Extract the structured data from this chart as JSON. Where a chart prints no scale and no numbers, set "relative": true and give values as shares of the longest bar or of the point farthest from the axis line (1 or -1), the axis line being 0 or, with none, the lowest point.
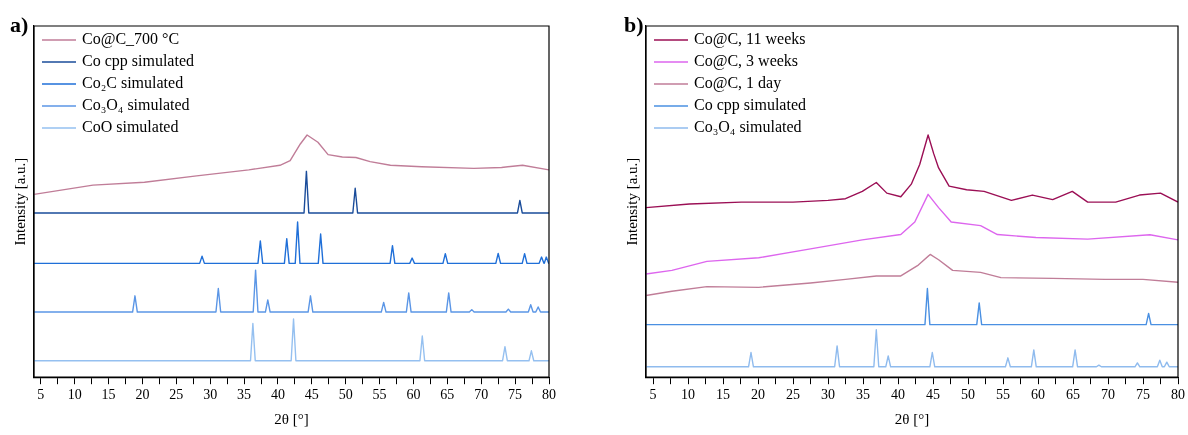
{
  "chart_data": [
    {
      "type": "line",
      "title": "a)",
      "xlabel": "2θ [°]",
      "ylabel": "Intensity [a.u.]",
      "relative": true,
      "legend": "top left",
      "grid": false,
      "xlim": [
        4,
        80
      ],
      "xticks": [
        5,
        {
          "value": 7.5,
          "label": null
        },
        10,
        {
          "value": 12.5,
          "label": null
        },
        15,
        {
          "value": 17.5,
          "label": null
        },
        20,
        {
          "value": 22.5,
          "label": null
        },
        25,
        {
          "value": 27.5,
          "label": null
        },
        30,
        {
          "value": 32.5,
          "label": null
        },
        35,
        {
          "value": 37.5,
          "label": null
        },
        40,
        {
          "value": 42.5,
          "label": null
        },
        45,
        {
          "value": 47.5,
          "label": null
        },
        50,
        {
          "value": 52.5,
          "label": null
        },
        55,
        {
          "value": 57.5,
          "label": null
        },
        60,
        {
          "value": 62.5,
          "label": null
        },
        65,
        {
          "value": 67.5,
          "label": null
        },
        70,
        {
          "value": 72.5,
          "label": null
        },
        75,
        {
          "value": 77.5,
          "label": null
        },
        80
      ],
      "series": [
        {
          "name": "Co@C_700 °C",
          "color": "#c07d98",
          "x": [
            4,
            12.7,
            20.3,
            28.0,
            35.7,
            40.3,
            41.8,
            43.3,
            44.3,
            45.9,
            47.4,
            49.5,
            51.5,
            53.6,
            56.6,
            61.2,
            68.9,
            73.0,
            76.1,
            80
          ],
          "values": [
            0.755,
            0.793,
            0.805,
            0.831,
            0.856,
            0.875,
            0.894,
            0.963,
            1.0,
            0.97,
            0.919,
            0.909,
            0.907,
            0.89,
            0.875,
            0.869,
            0.862,
            0.866,
            0.875,
            0.856
          ]
        },
        {
          "name": "Co cpp simulated",
          "color": "#1a4c9a",
          "x": [
            4,
            43.85,
            44.2,
            44.55,
            51.05,
            51.4,
            51.75,
            75.35,
            75.7,
            76.05,
            80
          ],
          "values": [
            0.678,
            0.678,
            0.85,
            0.678,
            0.678,
            0.78,
            0.678,
            0.678,
            0.73,
            0.678,
            0.678
          ]
        },
        {
          "name": "Co₂C simulated",
          "color": "#1f6fd8",
          "x": [
            4,
            28.45,
            28.8,
            29.15,
            37.05,
            37.4,
            37.75,
            40.95,
            41.3,
            41.65,
            42.55,
            42.9,
            43.25,
            45.95,
            46.3,
            46.65,
            56.55,
            56.9,
            57.25,
            59.45,
            59.8,
            60.15,
            64.35,
            64.7,
            65.05,
            72.15,
            72.5,
            72.85,
            76.05,
            76.4,
            76.75,
            78.55,
            78.9,
            79.25,
            79.3,
            79.6,
            79.95,
            80
          ],
          "values": [
            0.47,
            0.47,
            0.5,
            0.47,
            0.47,
            0.563,
            0.47,
            0.47,
            0.572,
            0.47,
            0.47,
            0.641,
            0.47,
            0.47,
            0.591,
            0.47,
            0.47,
            0.543,
            0.47,
            0.47,
            0.492,
            0.47,
            0.47,
            0.51,
            0.47,
            0.47,
            0.511,
            0.47,
            0.47,
            0.51,
            0.47,
            0.47,
            0.496,
            0.47,
            0.47,
            0.496,
            0.47,
            0.47
          ]
        },
        {
          "name": "Co₃O₄ simulated",
          "color": "#5b96e6",
          "x": [
            4,
            18.55,
            18.9,
            19.25,
            30.85,
            31.2,
            31.55,
            36.35,
            36.7,
            37.05,
            38.15,
            38.5,
            38.85,
            44.45,
            44.8,
            45.15,
            55.25,
            55.6,
            55.95,
            58.95,
            59.3,
            59.65,
            64.85,
            65.2,
            65.55,
            68.25,
            68.6,
            68.95,
            73.65,
            74.0,
            74.35,
            76.95,
            77.3,
            77.65,
            78.05,
            78.4,
            78.75,
            80
          ],
          "values": [
            0.269,
            0.269,
            0.336,
            0.269,
            0.269,
            0.366,
            0.269,
            0.269,
            0.442,
            0.269,
            0.269,
            0.319,
            0.269,
            0.269,
            0.336,
            0.269,
            0.269,
            0.309,
            0.269,
            0.269,
            0.348,
            0.269,
            0.269,
            0.348,
            0.269,
            0.269,
            0.279,
            0.269,
            0.269,
            0.281,
            0.269,
            0.269,
            0.299,
            0.269,
            0.269,
            0.29,
            0.269,
            0.269
          ]
        },
        {
          "name": "CoO simulated",
          "color": "#95c0f0",
          "x": [
            4,
            35.95,
            36.3,
            36.65,
            41.95,
            42.3,
            42.65,
            60.95,
            61.3,
            61.65,
            73.15,
            73.5,
            73.85,
            77.05,
            77.4,
            77.75,
            80
          ],
          "values": [
            0.068,
            0.068,
            0.222,
            0.068,
            0.068,
            0.24,
            0.068,
            0.068,
            0.17,
            0.068,
            0.068,
            0.126,
            0.068,
            0.068,
            0.109,
            0.068,
            0.068
          ]
        }
      ]
    },
    {
      "type": "line",
      "title": "b)",
      "xlabel": "2θ [°]",
      "ylabel": "Intensity [a.u.]",
      "relative": true,
      "legend": "top left",
      "grid": false,
      "xlim": [
        4,
        80
      ],
      "xticks": [
        5,
        {
          "value": 7.5,
          "label": null
        },
        10,
        {
          "value": 12.5,
          "label": null
        },
        15,
        {
          "value": 17.5,
          "label": null
        },
        20,
        {
          "value": 22.5,
          "label": null
        },
        25,
        {
          "value": 27.5,
          "label": null
        },
        30,
        {
          "value": 32.5,
          "label": null
        },
        35,
        {
          "value": 37.5,
          "label": null
        },
        40,
        {
          "value": 42.5,
          "label": null
        },
        45,
        {
          "value": 47.5,
          "label": null
        },
        50,
        {
          "value": 52.5,
          "label": null
        },
        55,
        {
          "value": 57.5,
          "label": null
        },
        60,
        {
          "value": 62.5,
          "label": null
        },
        65,
        {
          "value": 67.5,
          "label": null
        },
        70,
        {
          "value": 72.5,
          "label": null
        },
        75,
        {
          "value": 77.5,
          "label": null
        },
        80
      ],
      "series": [
        {
          "name": "Co@C, 11 weeks",
          "color": "#9b0f55",
          "x": [
            4,
            10.2,
            17.6,
            25.0,
            30.0,
            32.5,
            34.9,
            36.9,
            38.4,
            40.4,
            41.9,
            43.1,
            44.3,
            45.1,
            45.8,
            47.3,
            49.8,
            52.3,
            56.2,
            59.2,
            62.1,
            64.9,
            67.1,
            71.1,
            74.5,
            77.5,
            80
          ],
          "values": [
            0.7,
            0.715,
            0.723,
            0.723,
            0.73,
            0.737,
            0.767,
            0.804,
            0.76,
            0.745,
            0.797,
            0.878,
            1.0,
            0.923,
            0.864,
            0.789,
            0.774,
            0.767,
            0.73,
            0.752,
            0.733,
            0.767,
            0.723,
            0.723,
            0.752,
            0.76,
            0.723
          ]
        },
        {
          "name": "Co@C, 3 weeks",
          "color": "#dd66ee",
          "x": [
            4,
            7.7,
            12.7,
            20.1,
            27.5,
            34.9,
            40.4,
            42.4,
            44.3,
            45.8,
            47.6,
            51.8,
            54.2,
            59.7,
            67.1,
            76.0,
            80
          ],
          "values": [
            0.426,
            0.441,
            0.478,
            0.493,
            0.53,
            0.567,
            0.589,
            0.641,
            0.755,
            0.7,
            0.641,
            0.626,
            0.589,
            0.577,
            0.57,
            0.588,
            0.567
          ]
        },
        {
          "name": "Co@C, 1 day",
          "color": "#c07d98",
          "x": [
            4,
            7.7,
            12.7,
            20.1,
            27.5,
            32.5,
            36.9,
            40.4,
            42.9,
            44.6,
            45.8,
            47.8,
            51.8,
            54.7,
            62.1,
            69.6,
            75.0,
            80
          ],
          "values": [
            0.337,
            0.355,
            0.374,
            0.371,
            0.389,
            0.404,
            0.418,
            0.418,
            0.463,
            0.507,
            0.485,
            0.441,
            0.433,
            0.411,
            0.408,
            0.404,
            0.404,
            0.392
          ]
        },
        {
          "name": "Co cpp simulated",
          "color": "#4a90e2",
          "x": [
            4,
            43.85,
            44.2,
            44.55,
            51.25,
            51.6,
            51.95,
            75.45,
            75.8,
            76.15,
            80
          ],
          "values": [
            0.217,
            0.217,
            0.366,
            0.217,
            0.217,
            0.307,
            0.217,
            0.217,
            0.263,
            0.217,
            0.217
          ]
        },
        {
          "name": "Co₃O₄ simulated",
          "color": "#8fbbee",
          "x": [
            4,
            18.65,
            19.0,
            19.35,
            30.95,
            31.3,
            31.65,
            36.55,
            36.9,
            37.25,
            38.25,
            38.6,
            38.95,
            44.55,
            44.9,
            45.25,
            55.35,
            55.7,
            56.05,
            59.05,
            59.4,
            59.75,
            64.95,
            65.3,
            65.65,
            68.35,
            68.7,
            69.05,
            73.85,
            74.2,
            74.55,
            77.05,
            77.4,
            77.75,
            78.05,
            78.4,
            78.75,
            80
          ],
          "values": [
            0.043,
            0.043,
            0.102,
            0.043,
            0.043,
            0.129,
            0.043,
            0.043,
            0.196,
            0.043,
            0.043,
            0.088,
            0.043,
            0.043,
            0.102,
            0.043,
            0.043,
            0.08,
            0.043,
            0.043,
            0.113,
            0.043,
            0.043,
            0.113,
            0.043,
            0.043,
            0.05,
            0.043,
            0.043,
            0.059,
            0.043,
            0.043,
            0.07,
            0.043,
            0.043,
            0.062,
            0.043,
            0.043
          ]
        }
      ]
    }
  ]
}
